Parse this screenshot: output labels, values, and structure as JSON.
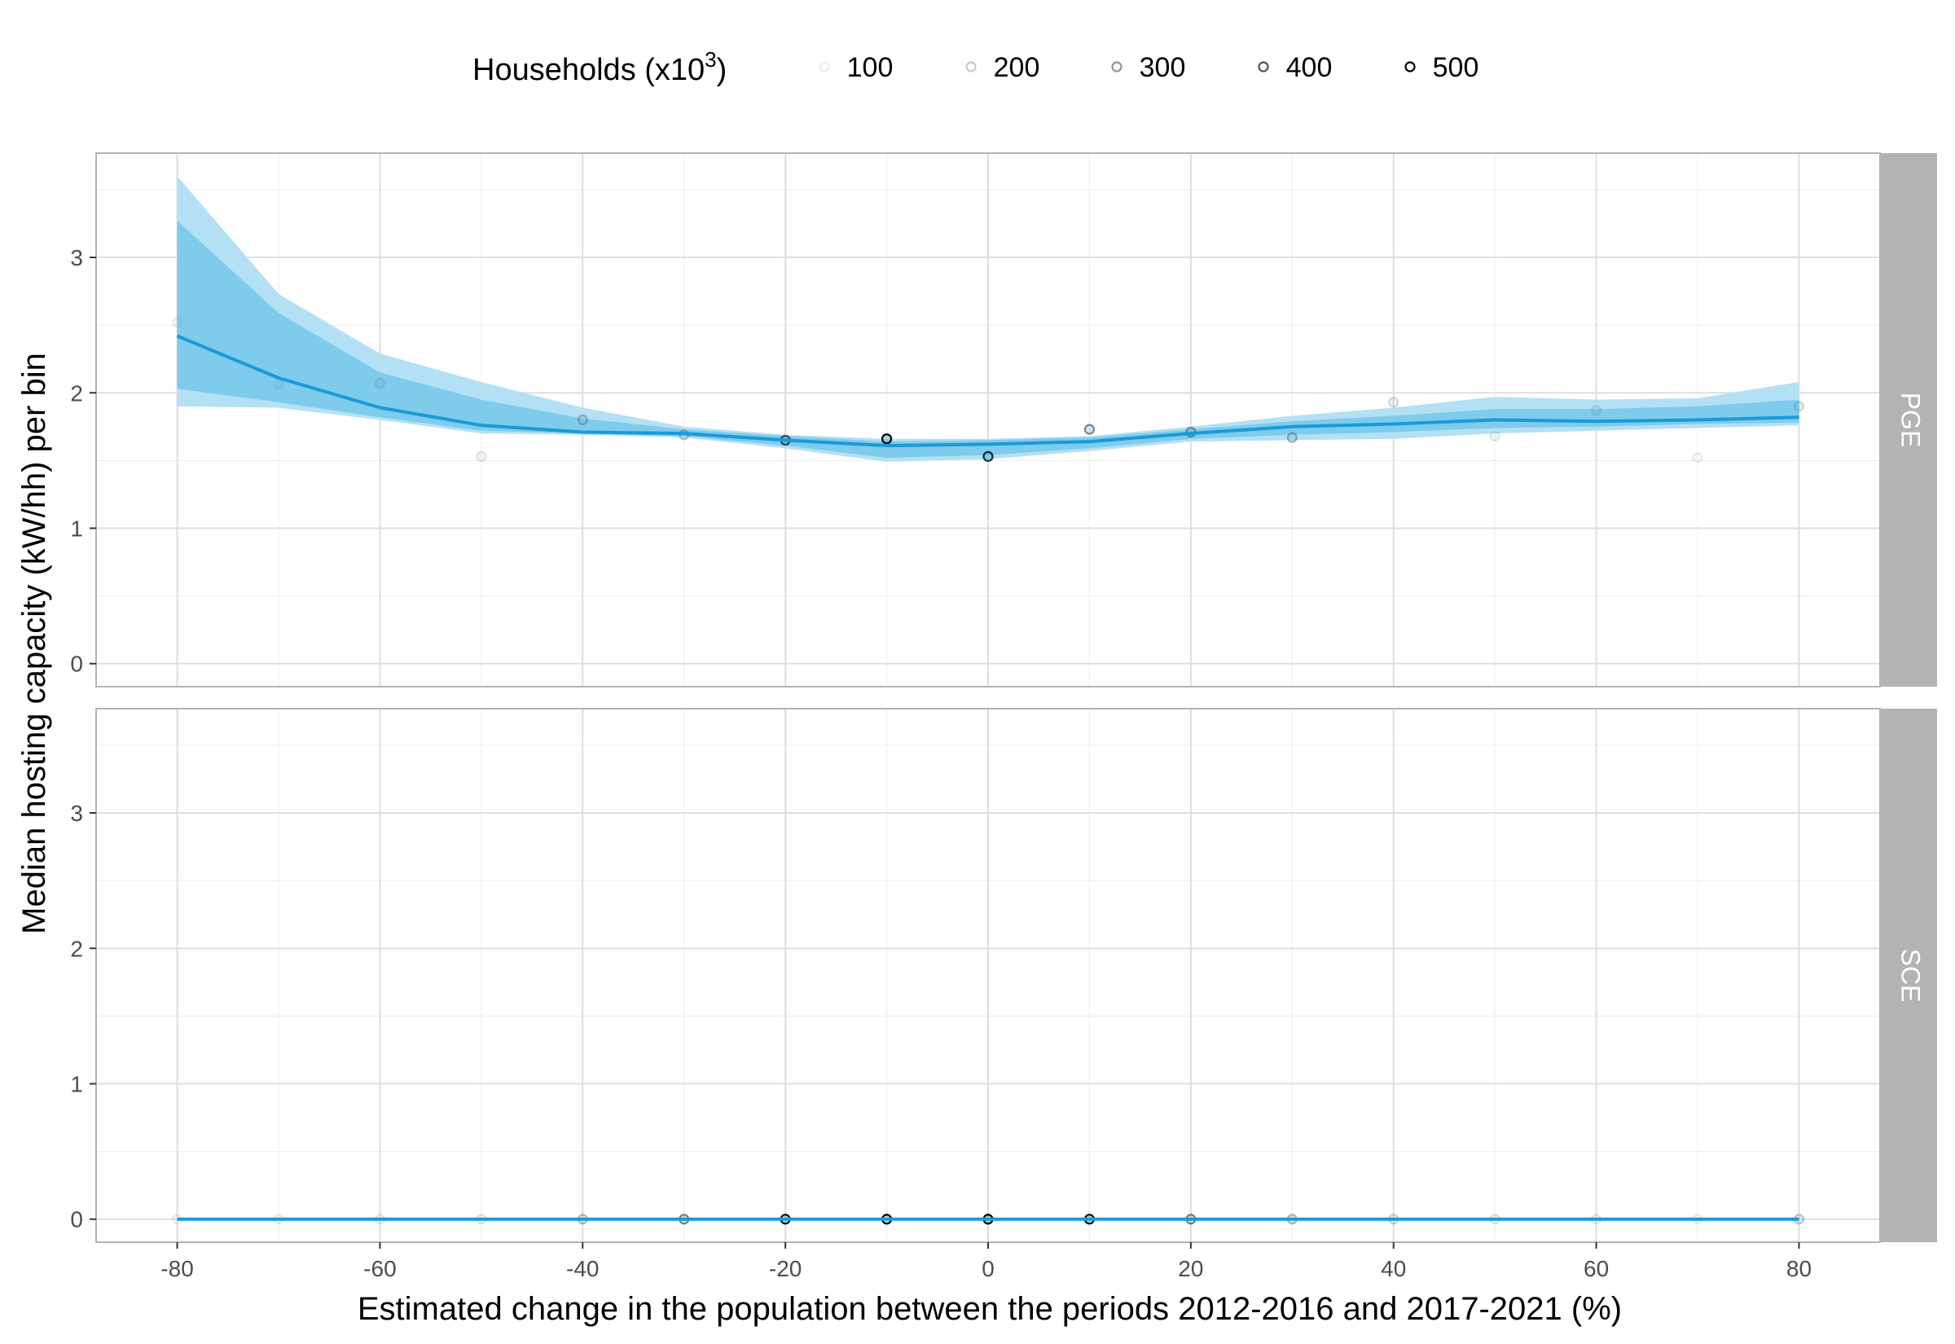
{
  "chart_data": {
    "type": "line",
    "xlabel": "Estimated change in the population between the periods 2012-2016 and 2017-2021 (%)",
    "ylabel": "Median hosting capacity (kW/hh) per bin",
    "xlim": [
      -88,
      88
    ],
    "ylim": [
      -0.17,
      3.77
    ],
    "x_ticks": [
      -80,
      -60,
      -40,
      -20,
      0,
      20,
      40,
      60,
      80
    ],
    "x_tick_labels": [
      "-80",
      "-60",
      "-40",
      "-20",
      "0",
      "20",
      "40",
      "60",
      "80"
    ],
    "y_ticks": [
      0,
      1,
      2,
      3
    ],
    "y_tick_labels": [
      "0",
      "1",
      "2",
      "3"
    ],
    "grid": true,
    "colors": {
      "line": "#1a9ad8",
      "ribbon_outer": "#b3e0f5",
      "ribbon_inner": "#7fcbec",
      "strip": "#b3b3b3",
      "panel_border": "#b3b3b3"
    },
    "legend": {
      "title": "Households (x10",
      "title_sup": "3",
      "title_close": ")",
      "position": "top",
      "entries": [
        {
          "label": "100",
          "value": 100
        },
        {
          "label": "200",
          "value": 200
        },
        {
          "label": "300",
          "value": 300
        },
        {
          "label": "400",
          "value": 400
        },
        {
          "label": "500",
          "value": 500
        }
      ]
    },
    "panels": [
      {
        "label": "PGE",
        "x": [
          -80,
          -70,
          -60,
          -50,
          -40,
          -30,
          -20,
          -10,
          0,
          10,
          20,
          30,
          40,
          50,
          60,
          70,
          80
        ],
        "line": [
          2.42,
          2.11,
          1.89,
          1.76,
          1.71,
          1.7,
          1.65,
          1.61,
          1.62,
          1.64,
          1.7,
          1.75,
          1.77,
          1.8,
          1.79,
          1.8,
          1.82
        ],
        "outer_lower": [
          1.9,
          1.89,
          1.8,
          1.7,
          1.69,
          1.67,
          1.59,
          1.49,
          1.51,
          1.57,
          1.64,
          1.65,
          1.66,
          1.7,
          1.72,
          1.74,
          1.76
        ],
        "outer_upper": [
          3.6,
          2.73,
          2.29,
          2.08,
          1.89,
          1.75,
          1.69,
          1.66,
          1.66,
          1.68,
          1.75,
          1.83,
          1.89,
          1.97,
          1.95,
          1.96,
          2.08
        ],
        "inner_lower": [
          2.03,
          1.93,
          1.82,
          1.72,
          1.7,
          1.68,
          1.61,
          1.52,
          1.54,
          1.59,
          1.66,
          1.69,
          1.71,
          1.74,
          1.75,
          1.77,
          1.78
        ],
        "inner_upper": [
          3.27,
          2.59,
          2.15,
          1.95,
          1.81,
          1.73,
          1.68,
          1.64,
          1.65,
          1.67,
          1.73,
          1.79,
          1.83,
          1.88,
          1.88,
          1.9,
          1.95
        ],
        "points": [
          {
            "x": -80,
            "y": 2.52,
            "households": 100
          },
          {
            "x": -70,
            "y": 2.06,
            "households": 120
          },
          {
            "x": -60,
            "y": 2.07,
            "households": 150
          },
          {
            "x": -50,
            "y": 1.53,
            "households": 130
          },
          {
            "x": -40,
            "y": 1.8,
            "households": 230
          },
          {
            "x": -30,
            "y": 1.69,
            "households": 230
          },
          {
            "x": -20,
            "y": 1.65,
            "households": 400
          },
          {
            "x": -10,
            "y": 1.66,
            "households": 500
          },
          {
            "x": 0,
            "y": 1.53,
            "households": 450
          },
          {
            "x": 10,
            "y": 1.73,
            "households": 320
          },
          {
            "x": 20,
            "y": 1.71,
            "households": 300
          },
          {
            "x": 30,
            "y": 1.67,
            "households": 250
          },
          {
            "x": 40,
            "y": 1.93,
            "households": 160
          },
          {
            "x": 50,
            "y": 1.68,
            "households": 120
          },
          {
            "x": 60,
            "y": 1.87,
            "households": 140
          },
          {
            "x": 70,
            "y": 1.52,
            "households": 100
          },
          {
            "x": 80,
            "y": 1.9,
            "households": 160
          }
        ]
      },
      {
        "label": "SCE",
        "x": [
          -80,
          -70,
          -60,
          -50,
          -40,
          -30,
          -20,
          -10,
          0,
          10,
          20,
          30,
          40,
          50,
          60,
          70,
          80
        ],
        "line": [
          0,
          0,
          0,
          0,
          0,
          0,
          0,
          0,
          0,
          0,
          0,
          0,
          0,
          0,
          0,
          0,
          0
        ],
        "outer_lower": [
          0,
          0,
          0,
          0,
          0,
          0,
          0,
          0,
          0,
          0,
          0,
          0,
          0,
          0,
          0,
          0,
          0
        ],
        "outer_upper": [
          0,
          0,
          0,
          0,
          0,
          0,
          0,
          0,
          0,
          0,
          0,
          0,
          0,
          0,
          0,
          0,
          0
        ],
        "inner_lower": [
          0,
          0,
          0,
          0,
          0,
          0,
          0,
          0,
          0,
          0,
          0,
          0,
          0,
          0,
          0,
          0,
          0
        ],
        "inner_upper": [
          0,
          0,
          0,
          0,
          0,
          0,
          0,
          0,
          0,
          0,
          0,
          0,
          0,
          0,
          0,
          0,
          0
        ],
        "points": [
          {
            "x": -80,
            "y": 0,
            "households": 100
          },
          {
            "x": -70,
            "y": 0,
            "households": 100
          },
          {
            "x": -60,
            "y": 0,
            "households": 110
          },
          {
            "x": -50,
            "y": 0,
            "households": 130
          },
          {
            "x": -40,
            "y": 0,
            "households": 230
          },
          {
            "x": -30,
            "y": 0,
            "households": 330
          },
          {
            "x": -20,
            "y": 0,
            "households": 480
          },
          {
            "x": -10,
            "y": 0,
            "households": 500
          },
          {
            "x": 0,
            "y": 0,
            "households": 500
          },
          {
            "x": 10,
            "y": 0,
            "households": 480
          },
          {
            "x": 20,
            "y": 0,
            "households": 330
          },
          {
            "x": 30,
            "y": 0,
            "households": 230
          },
          {
            "x": 40,
            "y": 0,
            "households": 170
          },
          {
            "x": 50,
            "y": 0,
            "households": 130
          },
          {
            "x": 60,
            "y": 0,
            "households": 110
          },
          {
            "x": 70,
            "y": 0,
            "households": 100
          },
          {
            "x": 80,
            "y": 0,
            "households": 200
          }
        ]
      }
    ]
  }
}
